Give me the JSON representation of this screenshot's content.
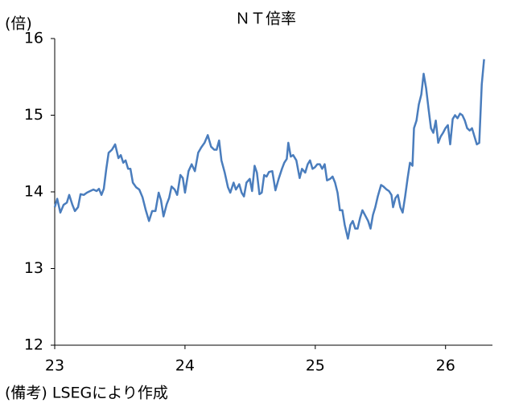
{
  "chart_data": {
    "type": "line",
    "title": "ＮＴ倍率",
    "y_label": "(倍)",
    "note": "(備考) LSEGにより作成",
    "color": "#4a7dbd",
    "xlim": [
      23,
      26.36
    ],
    "xticks": [
      23,
      24,
      25,
      26
    ],
    "ylim": [
      12,
      16
    ],
    "yticks": [
      12,
      13,
      14,
      15,
      16
    ],
    "x": [
      23.0,
      23.019,
      23.043,
      23.068,
      23.093,
      23.111,
      23.136,
      23.155,
      23.179,
      23.198,
      23.223,
      23.247,
      23.272,
      23.297,
      23.322,
      23.34,
      23.359,
      23.377,
      23.396,
      23.414,
      23.439,
      23.464,
      23.489,
      23.507,
      23.526,
      23.544,
      23.563,
      23.581,
      23.6,
      23.625,
      23.649,
      23.674,
      23.699,
      23.724,
      23.748,
      23.773,
      23.798,
      23.816,
      23.835,
      23.86,
      23.878,
      23.897,
      23.921,
      23.94,
      23.965,
      23.983,
      24.0,
      24.027,
      24.051,
      24.076,
      24.101,
      24.125,
      24.15,
      24.175,
      24.2,
      24.224,
      24.243,
      24.262,
      24.28,
      24.305,
      24.33,
      24.348,
      24.373,
      24.391,
      24.416,
      24.435,
      24.453,
      24.472,
      24.497,
      24.515,
      24.534,
      24.552,
      24.571,
      24.589,
      24.608,
      24.626,
      24.645,
      24.67,
      24.694,
      24.719,
      24.744,
      24.762,
      24.781,
      24.793,
      24.812,
      24.83,
      24.855,
      24.88,
      24.898,
      24.923,
      24.942,
      24.96,
      24.979,
      24.997,
      25.016,
      25.035,
      25.053,
      25.072,
      25.09,
      25.115,
      25.133,
      25.152,
      25.171,
      25.189,
      25.208,
      25.226,
      25.251,
      25.27,
      25.288,
      25.307,
      25.325,
      25.344,
      25.362,
      25.381,
      25.406,
      25.424,
      25.443,
      25.461,
      25.48,
      25.505,
      25.523,
      25.548,
      25.566,
      25.585,
      25.597,
      25.616,
      25.634,
      25.653,
      25.671,
      25.69,
      25.709,
      25.727,
      25.746,
      25.758,
      25.777,
      25.795,
      25.814,
      25.832,
      25.851,
      25.869,
      25.888,
      25.906,
      25.925,
      25.944,
      25.962,
      25.981,
      25.999,
      26.018,
      26.036,
      26.055,
      26.073,
      26.092,
      26.111,
      26.129,
      26.148,
      26.166,
      26.185,
      26.203,
      26.222,
      26.24,
      26.259,
      26.278,
      26.296
    ],
    "values": [
      13.8,
      13.91,
      13.73,
      13.83,
      13.86,
      13.96,
      13.83,
      13.75,
      13.8,
      13.97,
      13.96,
      13.99,
      14.01,
      14.03,
      14.01,
      14.04,
      13.96,
      14.04,
      14.3,
      14.51,
      14.55,
      14.62,
      14.44,
      14.48,
      14.38,
      14.41,
      14.3,
      14.3,
      14.12,
      14.06,
      14.03,
      13.93,
      13.76,
      13.62,
      13.75,
      13.75,
      13.99,
      13.89,
      13.68,
      13.84,
      13.92,
      14.07,
      14.03,
      13.96,
      14.22,
      14.18,
      13.99,
      14.27,
      14.36,
      14.27,
      14.51,
      14.58,
      14.64,
      14.74,
      14.59,
      14.55,
      14.55,
      14.67,
      14.41,
      14.25,
      14.06,
      13.99,
      14.12,
      14.03,
      14.1,
      13.99,
      13.94,
      14.12,
      14.17,
      14.01,
      14.34,
      14.25,
      13.97,
      13.99,
      14.22,
      14.2,
      14.26,
      14.27,
      14.02,
      14.17,
      14.3,
      14.38,
      14.43,
      14.64,
      14.46,
      14.48,
      14.41,
      14.18,
      14.3,
      14.25,
      14.36,
      14.41,
      14.3,
      14.32,
      14.36,
      14.36,
      14.3,
      14.36,
      14.15,
      14.17,
      14.2,
      14.12,
      13.99,
      13.76,
      13.76,
      13.57,
      13.39,
      13.57,
      13.62,
      13.52,
      13.52,
      13.66,
      13.76,
      13.7,
      13.62,
      13.52,
      13.7,
      13.8,
      13.94,
      14.09,
      14.07,
      14.03,
      14.01,
      13.96,
      13.8,
      13.92,
      13.96,
      13.8,
      13.73,
      13.94,
      14.18,
      14.38,
      14.34,
      14.83,
      14.93,
      15.14,
      15.27,
      15.54,
      15.35,
      15.09,
      14.83,
      14.77,
      14.93,
      14.64,
      14.72,
      14.77,
      14.83,
      14.87,
      14.62,
      14.95,
      15.0,
      14.96,
      15.02,
      15.0,
      14.93,
      14.83,
      14.8,
      14.83,
      14.72,
      14.62,
      14.64,
      15.4,
      15.73
    ]
  }
}
